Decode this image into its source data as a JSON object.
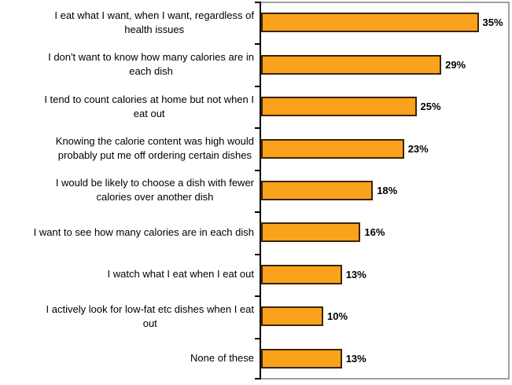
{
  "chart_data": {
    "type": "bar",
    "orientation": "horizontal",
    "title": "",
    "xlabel": "",
    "ylabel": "",
    "grid": false,
    "legend_position": "none",
    "xlim": [
      0,
      40
    ],
    "value_suffix": "%",
    "categories": [
      "I eat what I want, when I want, regardless of\nhealth issues",
      "I don't want to know how many calories are in\neach dish",
      "I tend to count calories at home but not when I\neat out",
      "Knowing the calorie content was high would\nprobably put me off ordering certain dishes",
      "I would be likely to choose a dish with fewer\ncalories over another dish",
      "I want to see how many calories are in each dish",
      "I watch what I eat when I eat out",
      "I actively look for low-fat etc dishes when I eat\nout",
      "None of these"
    ],
    "values": [
      35,
      29,
      25,
      23,
      18,
      16,
      13,
      10,
      13
    ],
    "value_labels": [
      "35%",
      "29%",
      "25%",
      "23%",
      "18%",
      "16%",
      "13%",
      "10%",
      "13%"
    ],
    "colors": {
      "bar_fill": "#FAA21B",
      "bar_border": "#3B2409",
      "axis": "#000000",
      "plot_border": "#A0A0A0",
      "background": "#FFFFFF",
      "label_text": "#000000"
    }
  }
}
